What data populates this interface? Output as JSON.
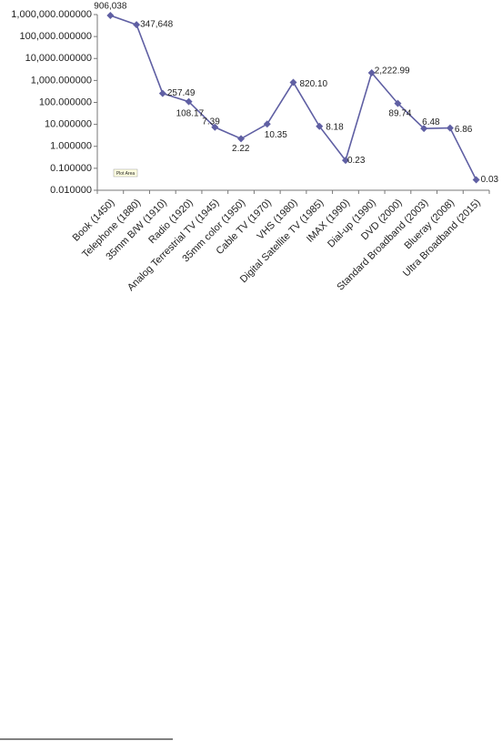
{
  "chart_data": {
    "type": "line",
    "categories": [
      "Book (1450)",
      "Telephone (1880)",
      "35mm B/W (1910)",
      "Radio (1920)",
      "Analog Terrestrial TV (1945)",
      "35mm color (1950)",
      "Cable TV (1970)",
      "VHS (1980)",
      "Digital Satellite TV (1985)",
      "IMAX (1990)",
      "Dial-up (1990)",
      "DVD (2000)",
      "Standard Broadband (2003)",
      "Blueray (2008)",
      "Ultra Broadband (2015)"
    ],
    "values": [
      906038,
      347648,
      257.49,
      108.17,
      7.39,
      2.22,
      10.35,
      820.1,
      8.18,
      0.23,
      2222.99,
      89.74,
      6.48,
      6.86,
      0.03
    ],
    "value_labels": [
      "906,038",
      "347,648",
      "257.49",
      "108.17",
      "7.39",
      "2.22",
      "10.35",
      "820.10",
      "8.18",
      "0.23",
      "2,222.99",
      "89.74",
      "6.48",
      "6.86",
      "0.03"
    ],
    "color": "#5f5fa3",
    "log_scale": true,
    "ylim": [
      0.01,
      1000000
    ],
    "yticks": [
      {
        "value": 0.01,
        "label": "0.010000"
      },
      {
        "value": 0.1,
        "label": "0.100000"
      },
      {
        "value": 1,
        "label": "1.000000"
      },
      {
        "value": 10,
        "label": "10.000000"
      },
      {
        "value": 100,
        "label": "100.000000"
      },
      {
        "value": 1000,
        "label": "1,000.000000"
      },
      {
        "value": 10000,
        "label": "10,000.000000"
      },
      {
        "value": 100000,
        "label": "100,000.000000"
      },
      {
        "value": 1000000,
        "label": "1,000,000.000000"
      }
    ],
    "annotation": "Plot Area"
  }
}
